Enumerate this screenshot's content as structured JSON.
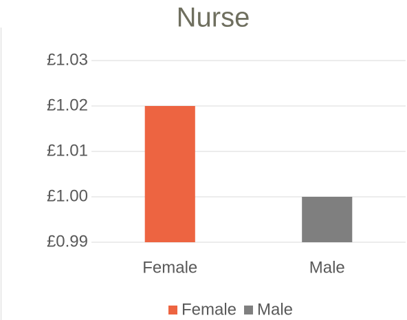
{
  "chart_data": {
    "type": "bar",
    "title": "Nurse",
    "categories": [
      "Female",
      "Male"
    ],
    "values": [
      1.02,
      1.0
    ],
    "colors": [
      "#ed6441",
      "#7f7f7f"
    ],
    "ylim": [
      0.99,
      1.03
    ],
    "yticks": [
      {
        "value": 0.99,
        "label": "£0.99"
      },
      {
        "value": 1.0,
        "label": "£1.00"
      },
      {
        "value": 1.01,
        "label": "£1.01"
      },
      {
        "value": 1.02,
        "label": "£1.02"
      },
      {
        "value": 1.03,
        "label": "£1.03"
      }
    ],
    "grid": true,
    "legend": "bottom"
  }
}
